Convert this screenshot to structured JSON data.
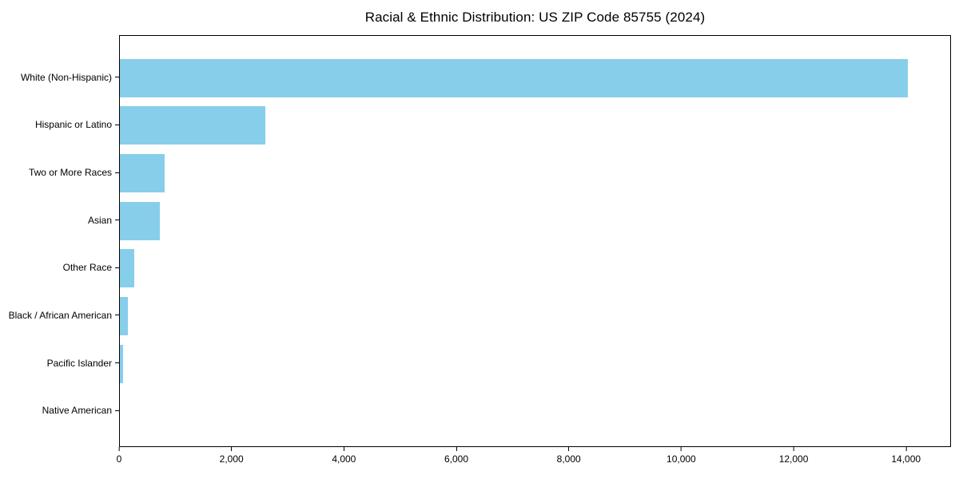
{
  "title": "Racial & Ethnic Distribution: US ZIP Code 85755 (2024)",
  "colors": {
    "bar": "#87CEEB",
    "axis": "#000000",
    "background": "#FFFFFF",
    "text": "#000000"
  },
  "chart_data": {
    "type": "bar",
    "orientation": "horizontal",
    "title": "Racial & Ethnic Distribution: US ZIP Code 85755 (2024)",
    "categories": [
      "White (Non-Hispanic)",
      "Hispanic or Latino",
      "Two or More Races",
      "Asian",
      "Other Race",
      "Black / African American",
      "Pacific Islander",
      "Native American"
    ],
    "values": [
      14040,
      2590,
      795,
      710,
      255,
      140,
      55,
      0
    ],
    "xlabel": "",
    "ylabel": "",
    "xlim": [
      0,
      14800
    ],
    "xticks": {
      "values": [
        0,
        2000,
        4000,
        6000,
        8000,
        10000,
        12000,
        14000
      ],
      "labels": [
        "0",
        "2,000",
        "4,000",
        "6,000",
        "8,000",
        "10,000",
        "12,000",
        "14,000"
      ]
    },
    "bar_color": "#87CEEB",
    "grid": false,
    "legend": null
  }
}
